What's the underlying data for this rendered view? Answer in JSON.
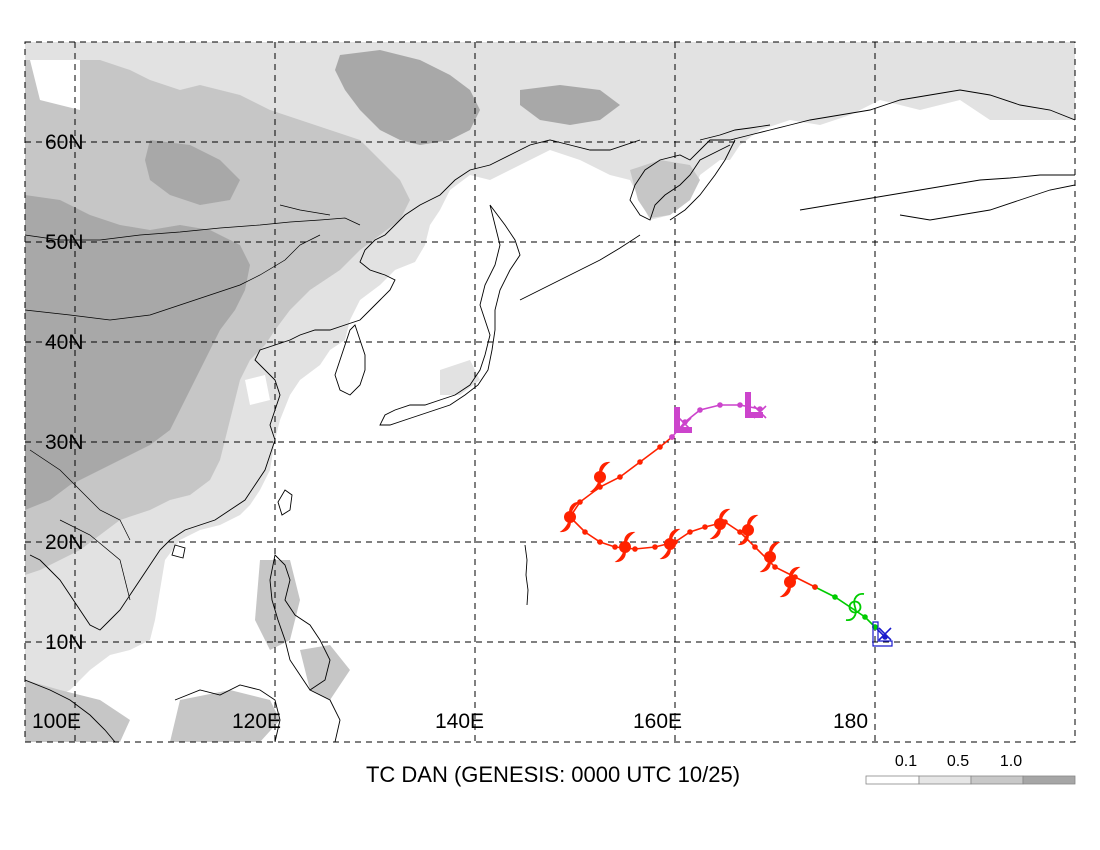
{
  "title": "TC DAN (GENESIS: 0000 UTC 10/25)",
  "lat_labels": [
    "60N",
    "50N",
    "40N",
    "30N",
    "20N",
    "10N"
  ],
  "lon_labels": [
    "100E",
    "120E",
    "140E",
    "160E",
    "180"
  ],
  "legend": {
    "values": [
      "0.1",
      "0.5",
      "1.0"
    ],
    "colors": [
      "#ffffff",
      "#e6e6e6",
      "#c8c8c8",
      "#a6a6a6"
    ]
  },
  "colors": {
    "depression": "#00cc00",
    "storm": "#ff2200",
    "extratropical": "#cc44cc",
    "dissipating": "#1a1acc",
    "grid": "#000000"
  },
  "track": {
    "genesis": [
      181,
      10
    ],
    "segments": [
      {
        "phase": "dissipating",
        "points": [
          [
            181.0,
            10.5
          ],
          [
            180.0,
            11.5
          ]
        ]
      },
      {
        "phase": "depression",
        "points": [
          [
            180.0,
            11.5
          ],
          [
            179.0,
            12.5
          ],
          [
            176.0,
            14.5
          ],
          [
            174.0,
            15.5
          ]
        ]
      },
      {
        "phase": "storm",
        "points": [
          [
            174.0,
            15.5
          ],
          [
            172.0,
            16.5
          ],
          [
            170.0,
            17.5
          ],
          [
            168.0,
            19.5
          ],
          [
            166.5,
            21.0
          ],
          [
            165.0,
            22.0
          ],
          [
            163.0,
            21.5
          ],
          [
            161.5,
            21.0
          ],
          [
            160.0,
            20.0
          ],
          [
            158.0,
            19.5
          ],
          [
            156.0,
            19.3
          ],
          [
            154.0,
            19.5
          ],
          [
            152.5,
            20.0
          ],
          [
            151.0,
            21.0
          ],
          [
            149.5,
            22.5
          ],
          [
            150.5,
            24.0
          ],
          [
            152.5,
            25.5
          ],
          [
            154.5,
            26.5
          ],
          [
            156.5,
            28.0
          ],
          [
            158.5,
            29.5
          ],
          [
            159.7,
            30.5
          ]
        ]
      },
      {
        "phase": "extratropical",
        "points": [
          [
            159.7,
            30.5
          ],
          [
            161.0,
            32.0
          ],
          [
            162.5,
            33.2
          ],
          [
            164.5,
            33.7
          ],
          [
            166.5,
            33.7
          ],
          [
            168.5,
            33.3
          ]
        ]
      }
    ],
    "storm_symbols": [
      [
        149.5,
        22.5
      ],
      [
        155.0,
        19.5
      ],
      [
        159.5,
        19.8
      ],
      [
        164.5,
        21.8
      ],
      [
        167.3,
        21.2
      ],
      [
        169.5,
        18.5
      ],
      [
        171.5,
        16.0
      ],
      [
        152.5,
        26.5
      ]
    ],
    "depression_symbols": [
      [
        178.0,
        13.5
      ]
    ],
    "low_symbols": [
      [
        160.7,
        31.5
      ],
      [
        167.8,
        33.0
      ]
    ],
    "x_marks": [
      [
        161.0,
        31.8
      ],
      [
        168.5,
        33.0
      ],
      [
        181.0,
        10.8
      ]
    ],
    "box_marks": [
      [
        180.3,
        10.2
      ]
    ]
  }
}
